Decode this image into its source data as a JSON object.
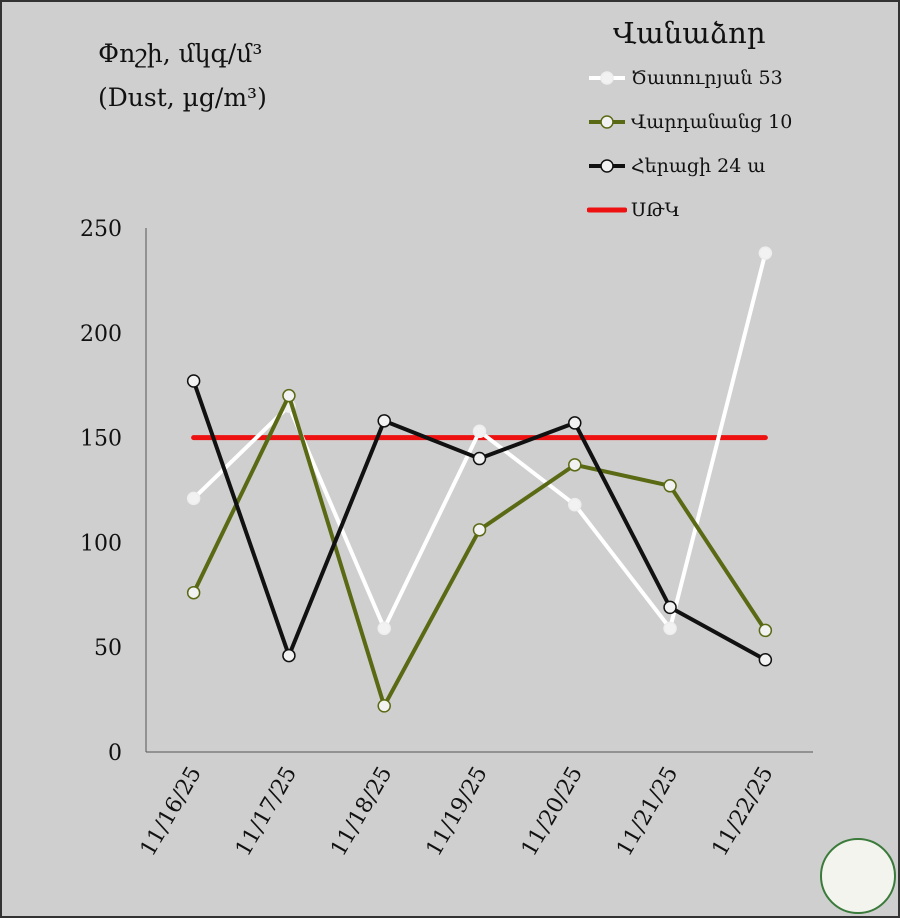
{
  "chart_data": {
    "type": "line",
    "title": "Վանաձոր",
    "ylabel_line1": "Փոշի, մկգ/մ³",
    "ylabel_line2": "(Dust, µg/m³)",
    "categories": [
      "11/16/25",
      "11/17/25",
      "11/18/25",
      "11/19/25",
      "11/20/25",
      "11/21/25",
      "11/22/25"
    ],
    "ylim": [
      0,
      250
    ],
    "yticks": [
      0,
      50,
      100,
      150,
      200,
      250
    ],
    "grid": false,
    "legend_placement": "top-right",
    "series": [
      {
        "name": "Ծատուրյան 53",
        "color": "#ffffff",
        "values": [
          121,
          165,
          59,
          153,
          118,
          59,
          238
        ]
      },
      {
        "name": "Վարդանանց 10",
        "color": "#5a6a14",
        "values": [
          76,
          170,
          22,
          106,
          137,
          127,
          58
        ]
      },
      {
        "name": "Հերացի 24 ա",
        "color": "#111111",
        "values": [
          177,
          46,
          158,
          140,
          157,
          69,
          44
        ]
      },
      {
        "name": "ՍԹԿ",
        "color": "#ee1111",
        "values": [
          150,
          150,
          150,
          150,
          150,
          150,
          150
        ],
        "markers": false
      }
    ]
  }
}
